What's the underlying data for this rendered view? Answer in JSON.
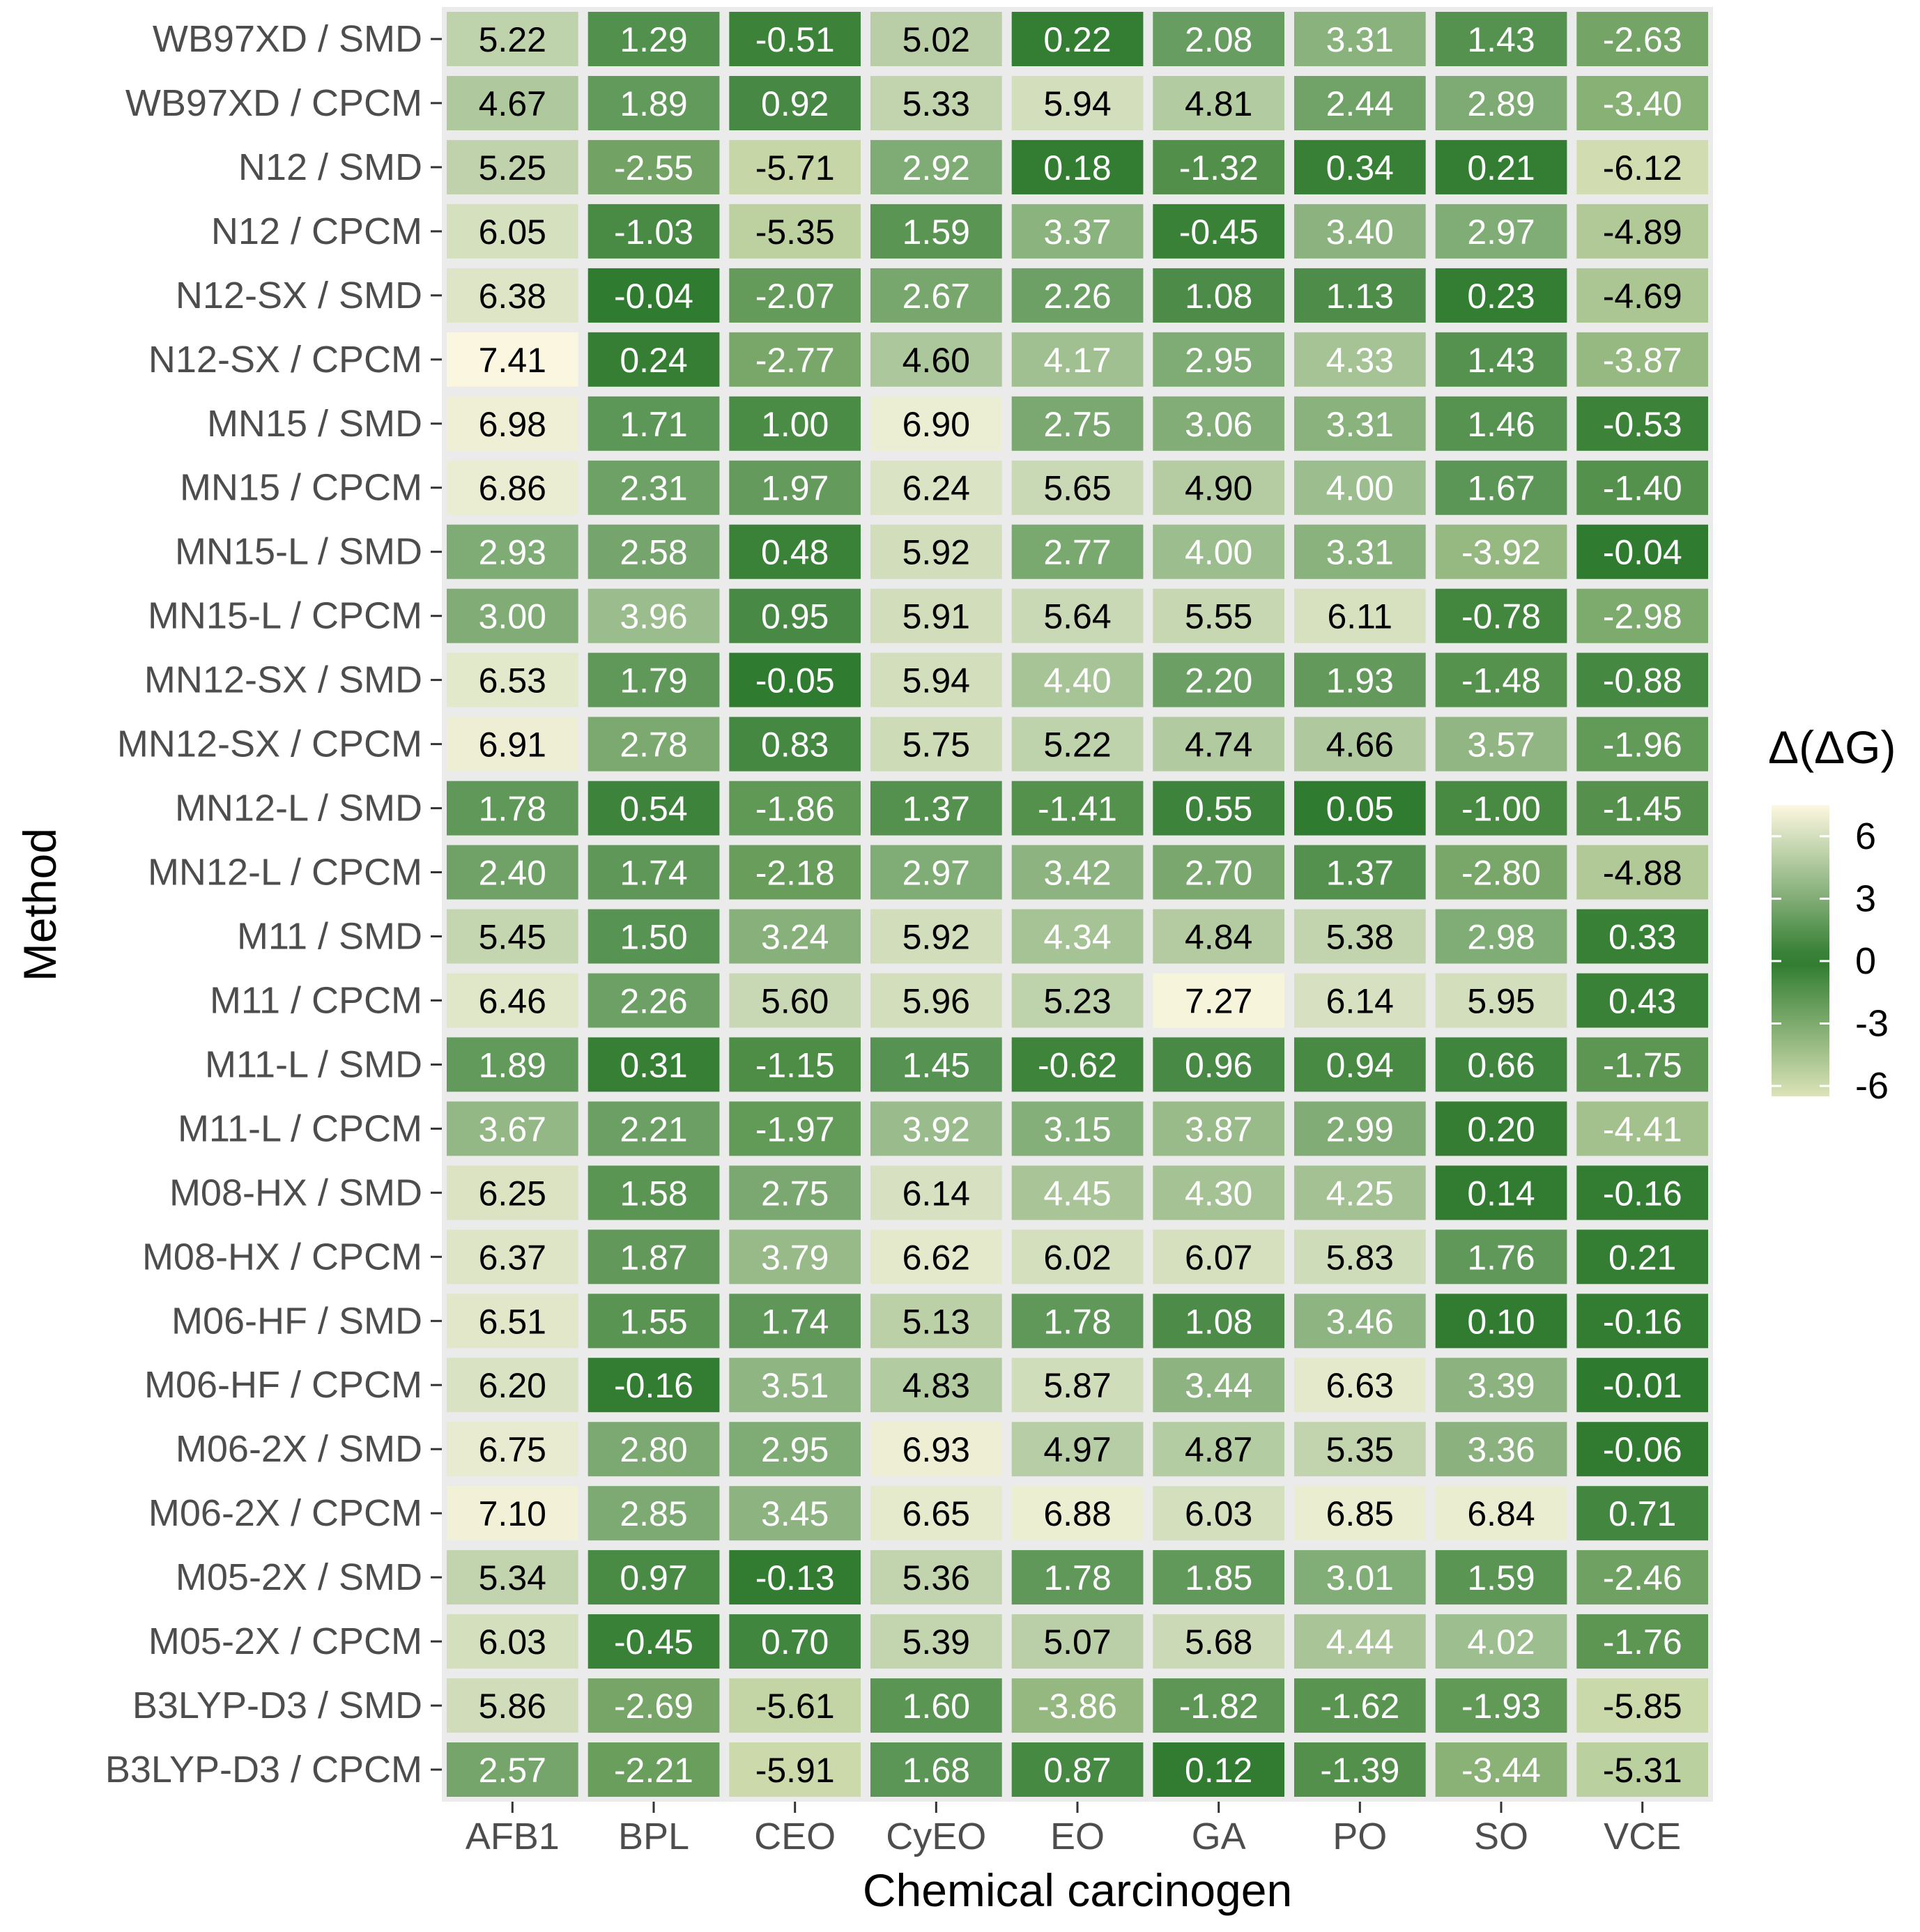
{
  "chart_data": {
    "type": "heatmap",
    "title": "",
    "xlabel": "Chemical carcinogen",
    "ylabel": "Method",
    "x_categories": [
      "AFB1",
      "BPL",
      "CEO",
      "CyEO",
      "EO",
      "GA",
      "PO",
      "SO",
      "VCE"
    ],
    "y_categories": [
      "WB97XD / SMD",
      "WB97XD / CPCM",
      "N12 / SMD",
      "N12 / CPCM",
      "N12-SX / SMD",
      "N12-SX / CPCM",
      "MN15 / SMD",
      "MN15 / CPCM",
      "MN15-L / SMD",
      "MN15-L / CPCM",
      "MN12-SX / SMD",
      "MN12-SX / CPCM",
      "MN12-L / SMD",
      "MN12-L / CPCM",
      "M11 / SMD",
      "M11 / CPCM",
      "M11-L / SMD",
      "M11-L / CPCM",
      "M08-HX / SMD",
      "M08-HX / CPCM",
      "M06-HF / SMD",
      "M06-HF / CPCM",
      "M06-2X / SMD",
      "M06-2X / CPCM",
      "M05-2X / SMD",
      "M05-2X / CPCM",
      "B3LYP-D3 / SMD",
      "B3LYP-D3 / CPCM"
    ],
    "values": [
      [
        5.22,
        1.29,
        -0.51,
        5.02,
        0.22,
        2.08,
        3.31,
        1.43,
        -2.63
      ],
      [
        4.67,
        1.89,
        0.92,
        5.33,
        5.94,
        4.81,
        2.44,
        2.89,
        -3.4
      ],
      [
        5.25,
        -2.55,
        -5.71,
        2.92,
        0.18,
        -1.32,
        0.34,
        0.21,
        -6.12
      ],
      [
        6.05,
        -1.03,
        -5.35,
        1.59,
        3.37,
        -0.45,
        3.4,
        2.97,
        -4.89
      ],
      [
        6.38,
        -0.04,
        -2.07,
        2.67,
        2.26,
        1.08,
        1.13,
        0.23,
        -4.69
      ],
      [
        7.41,
        0.24,
        -2.77,
        4.6,
        4.17,
        2.95,
        4.33,
        1.43,
        -3.87
      ],
      [
        6.98,
        1.71,
        1.0,
        6.9,
        2.75,
        3.06,
        3.31,
        1.46,
        -0.53
      ],
      [
        6.86,
        2.31,
        1.97,
        6.24,
        5.65,
        4.9,
        4.0,
        1.67,
        -1.4
      ],
      [
        2.93,
        2.58,
        0.48,
        5.92,
        2.77,
        4.0,
        3.31,
        -3.92,
        -0.04
      ],
      [
        3.0,
        3.96,
        0.95,
        5.91,
        5.64,
        5.55,
        6.11,
        -0.78,
        -2.98
      ],
      [
        6.53,
        1.79,
        -0.05,
        5.94,
        4.4,
        2.2,
        1.93,
        -1.48,
        -0.88
      ],
      [
        6.91,
        2.78,
        0.83,
        5.75,
        5.22,
        4.74,
        4.66,
        3.57,
        -1.96
      ],
      [
        1.78,
        0.54,
        -1.86,
        1.37,
        -1.41,
        0.55,
        0.05,
        -1.0,
        -1.45
      ],
      [
        2.4,
        1.74,
        -2.18,
        2.97,
        3.42,
        2.7,
        1.37,
        -2.8,
        -4.88
      ],
      [
        5.45,
        1.5,
        3.24,
        5.92,
        4.34,
        4.84,
        5.38,
        2.98,
        0.33
      ],
      [
        6.46,
        2.26,
        5.6,
        5.96,
        5.23,
        7.27,
        6.14,
        5.95,
        0.43
      ],
      [
        1.89,
        0.31,
        -1.15,
        1.45,
        -0.62,
        0.96,
        0.94,
        0.66,
        -1.75
      ],
      [
        3.67,
        2.21,
        -1.97,
        3.92,
        3.15,
        3.87,
        2.99,
        0.2,
        -4.41
      ],
      [
        6.25,
        1.58,
        2.75,
        6.14,
        4.45,
        4.3,
        4.25,
        0.14,
        -0.16
      ],
      [
        6.37,
        1.87,
        3.79,
        6.62,
        6.02,
        6.07,
        5.83,
        1.76,
        0.21
      ],
      [
        6.51,
        1.55,
        1.74,
        5.13,
        1.78,
        1.08,
        3.46,
        0.1,
        -0.16
      ],
      [
        6.2,
        -0.16,
        3.51,
        4.83,
        5.87,
        3.44,
        6.63,
        3.39,
        -0.01
      ],
      [
        6.75,
        2.8,
        2.95,
        6.93,
        4.97,
        4.87,
        5.35,
        3.36,
        -0.06
      ],
      [
        7.1,
        2.85,
        3.45,
        6.65,
        6.88,
        6.03,
        6.85,
        6.84,
        0.71
      ],
      [
        5.34,
        0.97,
        -0.13,
        5.36,
        1.78,
        1.85,
        3.01,
        1.59,
        -2.46
      ],
      [
        6.03,
        -0.45,
        0.7,
        5.39,
        5.07,
        5.68,
        4.44,
        4.02,
        -1.76
      ],
      [
        5.86,
        -2.69,
        -5.61,
        1.6,
        -3.86,
        -1.82,
        -1.62,
        -1.93,
        -5.85
      ],
      [
        2.57,
        -2.21,
        -5.91,
        1.68,
        0.87,
        0.12,
        -1.39,
        -3.44,
        -5.31
      ]
    ],
    "legend": {
      "title": "Δ(ΔG)",
      "ticks": [
        6,
        3,
        0,
        -3,
        -6
      ],
      "range": [
        -6.5,
        7.5
      ],
      "position": "right"
    },
    "color_scale": {
      "low": "#dbe3b8",
      "mid": "#2e7a2e",
      "high": "#fdf8e1",
      "midpoint": 0
    }
  },
  "colors": {
    "panel_background": "#ebebeb",
    "text_dark": "#000000",
    "text_light": "#ffffff",
    "axis_text": "#4d4d4d"
  }
}
